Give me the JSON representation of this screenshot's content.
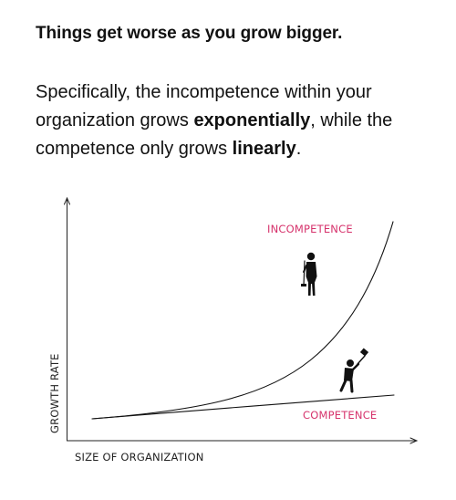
{
  "headline": "Things get worse as you grow bigger.",
  "paragraph": {
    "lead": "Specifically, the incompetence within your organization grows ",
    "emph1": "exponentially",
    "mid": ", while the competence only grows ",
    "emph2": "linearly",
    "tail": "."
  },
  "chart_data": {
    "type": "line",
    "xlabel": "SIZE OF ORGANIZATION",
    "ylabel": "GROWTH RATE",
    "grid": false,
    "series": [
      {
        "name": "INCOMPETENCE",
        "shape": "exponential",
        "color": "#111111"
      },
      {
        "name": "COMPETENCE",
        "shape": "linear",
        "color": "#111111"
      }
    ],
    "label_color": "#d6336c",
    "annotations": [
      "standing-figure-with-mop",
      "figure-swinging-sledgehammer"
    ]
  }
}
